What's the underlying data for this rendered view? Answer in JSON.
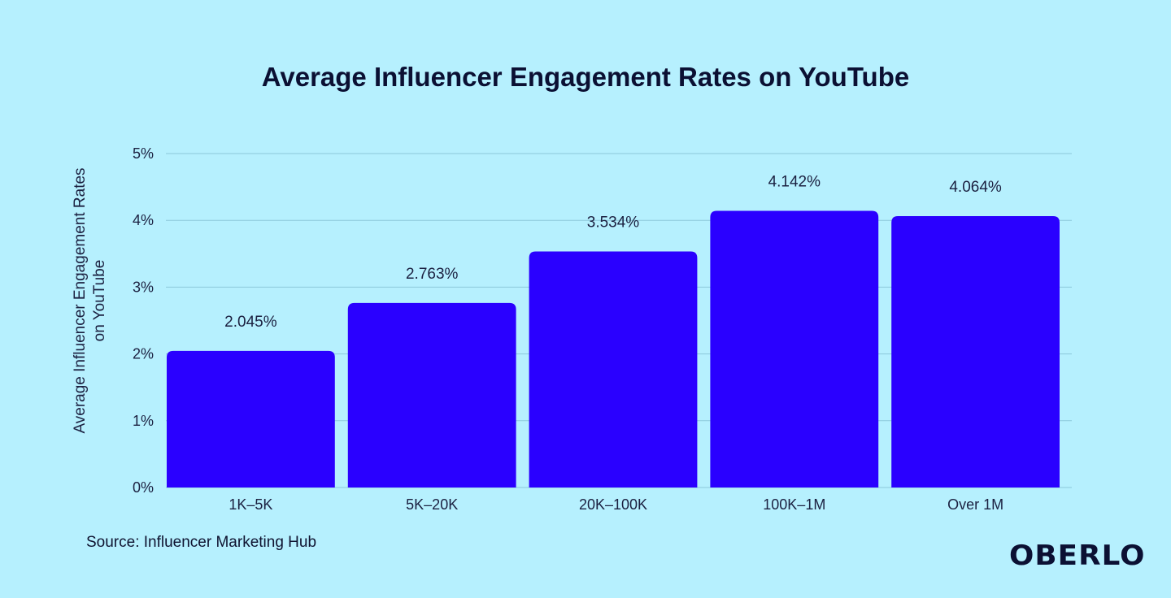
{
  "chart_data": {
    "type": "bar",
    "title": "Average Influencer Engagement Rates on YouTube",
    "ylabel": "Average Influencer Engagement Rates on YouTube",
    "ylabel_lines": [
      "Average Influencer Engagement Rates",
      "on YouTube"
    ],
    "xlabel": "",
    "categories": [
      "1K–5K",
      "5K–20K",
      "20K–100K",
      "100K–1M",
      "Over 1M"
    ],
    "values": [
      2.045,
      2.763,
      3.534,
      4.142,
      4.064
    ],
    "data_labels": [
      "2.045%",
      "2.763%",
      "3.534%",
      "4.142%",
      "4.064%"
    ],
    "ylim": [
      0,
      5
    ],
    "yticks": [
      0,
      1,
      2,
      3,
      4,
      5
    ],
    "ytick_labels": [
      "0%",
      "1%",
      "2%",
      "3%",
      "4%",
      "5%"
    ],
    "grid": true,
    "legend": "none",
    "bar_color": "#2a00ff",
    "background": "#b6f0fe"
  },
  "source": "Source: Influencer Marketing Hub",
  "logo": "OBERLO"
}
